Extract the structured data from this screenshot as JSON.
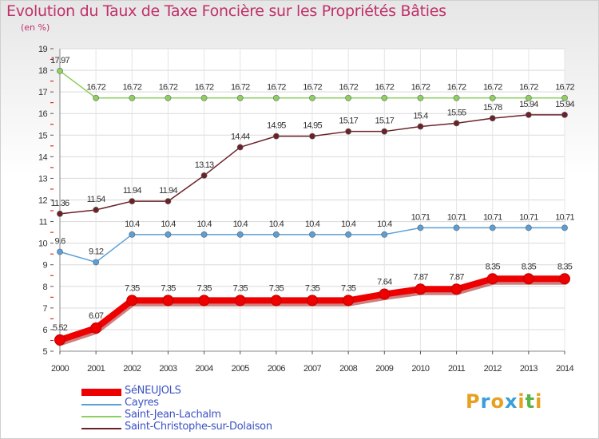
{
  "title": "Evolution du Taux de Taxe Foncière sur les Propriétés Bâties",
  "subtitle": "(en %)",
  "logo": {
    "letters": [
      "P",
      "r",
      "o",
      "x",
      "i",
      "t",
      "i"
    ],
    "colors": [
      "#e8a020",
      "#3a9fd8",
      "#e8a020",
      "#3a9fd8",
      "#e8a020",
      "#5ab446",
      "#e8a020"
    ]
  },
  "chart_data": {
    "type": "line",
    "title": "Evolution du Taux de Taxe Foncière sur les Propriétés Bâties",
    "ylabel": "(en %)",
    "xlabel": "",
    "ylim": [
      5,
      19
    ],
    "yticks": [
      "5",
      "6",
      "7",
      "8",
      "9",
      "10",
      "11",
      "12",
      "13",
      "14",
      "15",
      "16",
      "17",
      "18",
      "19"
    ],
    "categories": [
      "2000",
      "2001",
      "2002",
      "2003",
      "2004",
      "2005",
      "2006",
      "2007",
      "2008",
      "2009",
      "2010",
      "2011",
      "2012",
      "2013",
      "2014"
    ],
    "series": [
      {
        "name": "SéNEUJOLS",
        "color": "#ee0000",
        "values": [
          5.52,
          6.07,
          7.35,
          7.35,
          7.35,
          7.35,
          7.35,
          7.35,
          7.35,
          7.64,
          7.87,
          7.87,
          8.35,
          8.35,
          8.35
        ],
        "labels": [
          "5.52",
          "6.07",
          "7.35",
          "7.35",
          "7.35",
          "7.35",
          "7.35",
          "7.35",
          "7.35",
          "7.64",
          "7.87",
          "7.87",
          "8.35",
          "8.35",
          "8.35"
        ]
      },
      {
        "name": "Cayres",
        "color": "#5a9fd8",
        "values": [
          9.6,
          9.12,
          10.4,
          10.4,
          10.4,
          10.4,
          10.4,
          10.4,
          10.4,
          10.4,
          10.71,
          10.71,
          10.71,
          10.71,
          10.71
        ],
        "labels": [
          "9.6",
          "9.12",
          "10.4",
          "10.4",
          "10.4",
          "10.4",
          "10.4",
          "10.4",
          "10.4",
          "10.4",
          "10.71",
          "10.71",
          "10.71",
          "10.71",
          "10.71"
        ]
      },
      {
        "name": "Saint-Jean-Lachalm",
        "color": "#8ed060",
        "values": [
          17.97,
          16.72,
          16.72,
          16.72,
          16.72,
          16.72,
          16.72,
          16.72,
          16.72,
          16.72,
          16.72,
          16.72,
          16.72,
          16.72,
          16.72
        ],
        "labels": [
          "17.97",
          "16.72",
          "16.72",
          "16.72",
          "16.72",
          "16.72",
          "16.72",
          "16.72",
          "16.72",
          "16.72",
          "16.72",
          "16.72",
          "16.72",
          "16.72",
          "16.72"
        ]
      },
      {
        "name": "Saint-Christophe-sur-Dolaison",
        "color": "#6a2228",
        "values": [
          11.36,
          11.54,
          11.94,
          11.94,
          13.13,
          14.44,
          14.95,
          14.95,
          15.17,
          15.17,
          15.4,
          15.55,
          15.78,
          15.94,
          15.94
        ],
        "labels": [
          "11.36",
          "11.54",
          "11.94",
          "11.94",
          "13.13",
          "14.44",
          "14.95",
          "14.95",
          "15.17",
          "15.17",
          "15.4",
          "15.55",
          "15.78",
          "15.94",
          "15.94"
        ]
      }
    ]
  }
}
